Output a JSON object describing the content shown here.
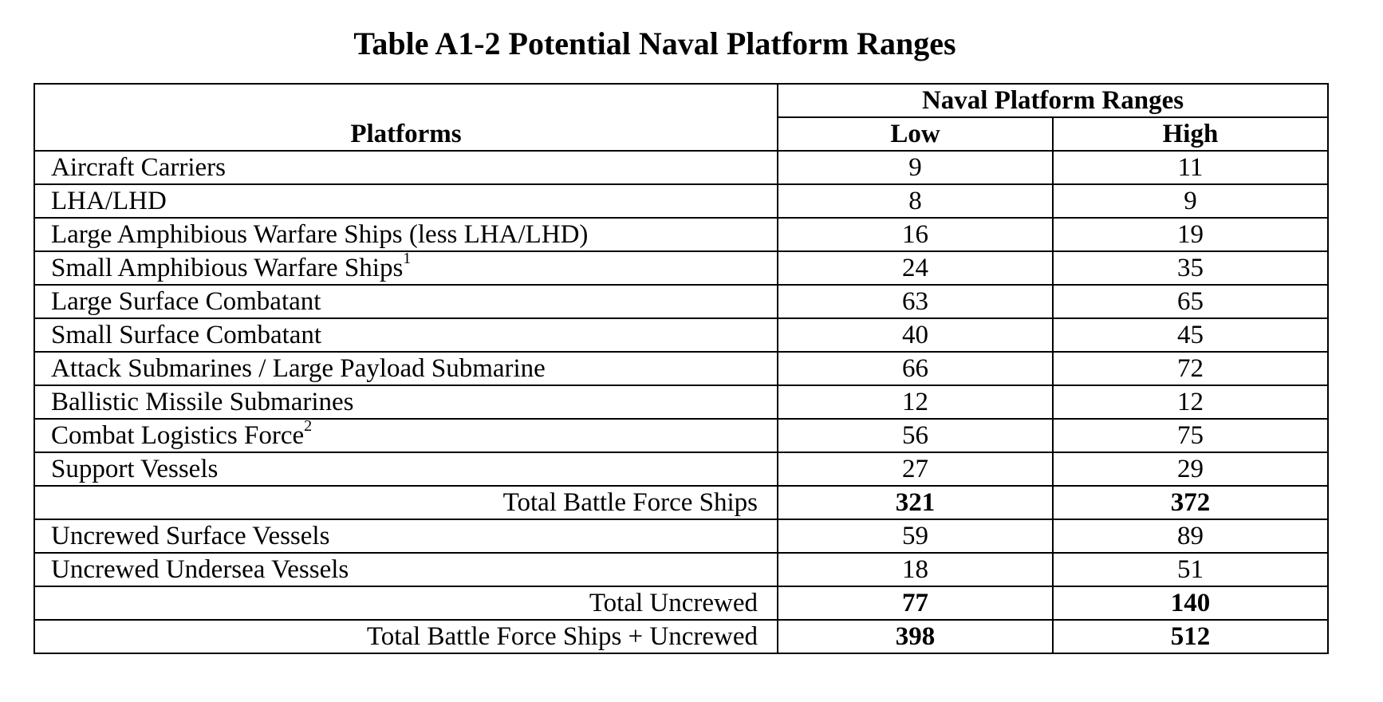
{
  "title": "Table A1-2 Potential Naval Platform Ranges",
  "table": {
    "group_header": "Naval Platform Ranges",
    "columns": [
      "Platforms",
      "Low",
      "High"
    ],
    "rows": [
      {
        "platform": "Aircraft Carriers",
        "sup": "",
        "low": "9",
        "high": "11"
      },
      {
        "platform": "LHA/LHD",
        "sup": "",
        "low": "8",
        "high": "9"
      },
      {
        "platform": "Large Amphibious Warfare Ships (less LHA/LHD)",
        "sup": "",
        "low": "16",
        "high": "19"
      },
      {
        "platform": "Small Amphibious Warfare Ships",
        "sup": "1",
        "low": "24",
        "high": "35"
      },
      {
        "platform": "Large Surface Combatant",
        "sup": "",
        "low": "63",
        "high": "65"
      },
      {
        "platform": "Small Surface Combatant",
        "sup": "",
        "low": "40",
        "high": "45"
      },
      {
        "platform": "Attack Submarines / Large Payload Submarine",
        "sup": "",
        "low": "66",
        "high": "72"
      },
      {
        "platform": "Ballistic Missile Submarines",
        "sup": "",
        "low": "12",
        "high": "12"
      },
      {
        "platform": "Combat Logistics Force",
        "sup": "2",
        "low": "56",
        "high": "75"
      },
      {
        "platform": "Support Vessels",
        "sup": "",
        "low": "27",
        "high": "29"
      }
    ],
    "total_battle_force": {
      "label": "Total Battle Force Ships",
      "low": "321",
      "high": "372"
    },
    "uncrewed_rows": [
      {
        "platform": "Uncrewed Surface Vessels",
        "low": "59",
        "high": "89"
      },
      {
        "platform": "Uncrewed Undersea Vessels",
        "low": "18",
        "high": "51"
      }
    ],
    "total_uncrewed": {
      "label": "Total Uncrewed",
      "low": "77",
      "high": "140"
    },
    "grand_total": {
      "label": "Total Battle Force Ships + Uncrewed",
      "low": "398",
      "high": "512"
    }
  }
}
